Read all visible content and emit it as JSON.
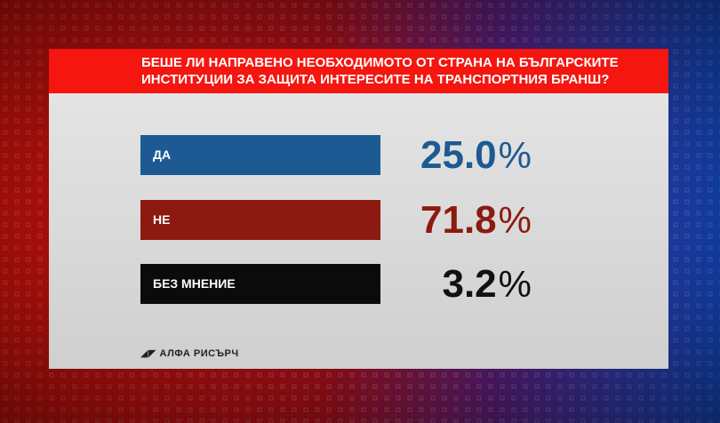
{
  "header": {
    "title_lines": [
      "БЕШЕ ЛИ НАПРАВЕНО НЕОБХОДИМОТО ОТ СТРАНА НА БЪЛГАРСКИТЕ",
      "ИНСТИТУЦИИ ЗА ЗАЩИТА ИНТЕРЕСИТЕ НА ТРАНСПОРТНИЯ БРАНШ?"
    ]
  },
  "options": [
    {
      "label": "ДА",
      "value": "25.0",
      "unit": "%",
      "color": "#1d5a93"
    },
    {
      "label": "НЕ",
      "value": "71.8",
      "unit": "%",
      "color": "#8c1a10"
    },
    {
      "label": "БЕЗ МНЕНИЕ",
      "value": "3.2",
      "unit": "%",
      "color": "#0b0b0b"
    }
  ],
  "source": "АЛФА РИСЪРЧ"
}
